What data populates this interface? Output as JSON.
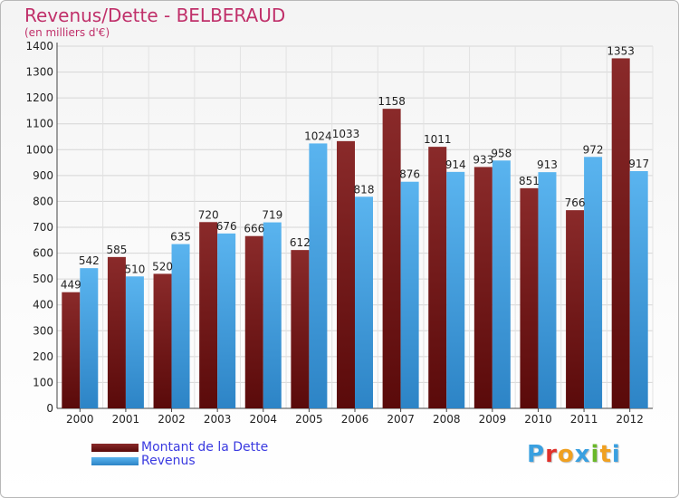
{
  "colors": {
    "debt_light": "#8a2a2a",
    "debt_dark": "#5a0a0a",
    "revenue_light": "#5ab4ef",
    "revenue_dark": "#2d84c6",
    "title": "#c0306a",
    "legend_text": "#3a3ae0"
  },
  "chart_data": {
    "type": "bar",
    "title": "Revenus/Dette - BELBERAUD",
    "subtitle": "(en milliers d'€)",
    "categories": [
      "2000",
      "2001",
      "2002",
      "2003",
      "2004",
      "2005",
      "2006",
      "2007",
      "2008",
      "2009",
      "2010",
      "2011",
      "2012"
    ],
    "series": [
      {
        "name": "Montant de la Dette",
        "values": [
          449,
          585,
          520,
          720,
          666,
          612,
          1033,
          1158,
          1011,
          933,
          851,
          766,
          1353
        ]
      },
      {
        "name": "Revenus",
        "values": [
          542,
          510,
          635,
          676,
          719,
          1024,
          818,
          876,
          914,
          958,
          913,
          972,
          917
        ]
      }
    ],
    "ylim": [
      0,
      1400
    ],
    "yticks": [
      0,
      100,
      200,
      300,
      400,
      500,
      600,
      700,
      800,
      900,
      1000,
      1100,
      1200,
      1300,
      1400
    ],
    "grid": true,
    "legend_position": "bottom-left"
  },
  "logo": {
    "letters": [
      "P",
      "r",
      "o",
      "x",
      "i",
      "t",
      "i"
    ],
    "colors": [
      "#3aa0e0",
      "#e0302a",
      "#f0a020",
      "#3aa0e0",
      "#6ab82a",
      "#f0a020",
      "#3aa0e0"
    ]
  }
}
